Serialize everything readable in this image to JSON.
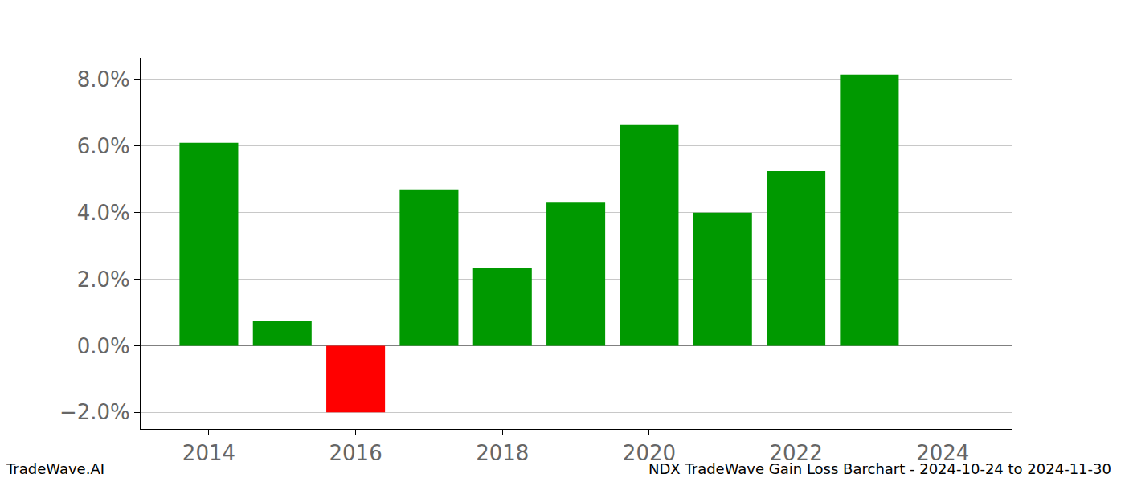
{
  "chart_data": {
    "type": "bar",
    "title": "NDX TradeWave Gain Loss Barchart - 2024-10-24 to 2024-11-30",
    "annotations": [
      {
        "text": "TradeWave.AI"
      }
    ],
    "x": [
      2014,
      2015,
      2016,
      2017,
      2018,
      2019,
      2020,
      2021,
      2022,
      2023
    ],
    "values": [
      6.1,
      0.75,
      -2.0,
      4.7,
      2.35,
      4.3,
      6.65,
      4.0,
      5.25,
      8.15
    ],
    "colors": [
      "#009900",
      "#009900",
      "#ff0000",
      "#009900",
      "#009900",
      "#009900",
      "#009900",
      "#009900",
      "#009900",
      "#009900"
    ],
    "xlim": [
      2013.07,
      2024.95
    ],
    "xticks": [
      2014,
      2016,
      2018,
      2020,
      2022,
      2024
    ],
    "ylim": [
      -2.5,
      8.65
    ],
    "yticks": [
      {
        "value": -2,
        "label": "−2.0%"
      },
      {
        "value": 0,
        "label": "0.0%"
      },
      {
        "value": 2,
        "label": "2.0%"
      },
      {
        "value": 4,
        "label": "4.0%"
      },
      {
        "value": 6,
        "label": "6.0%"
      },
      {
        "value": 8,
        "label": "8.0%"
      }
    ],
    "grid": true
  }
}
